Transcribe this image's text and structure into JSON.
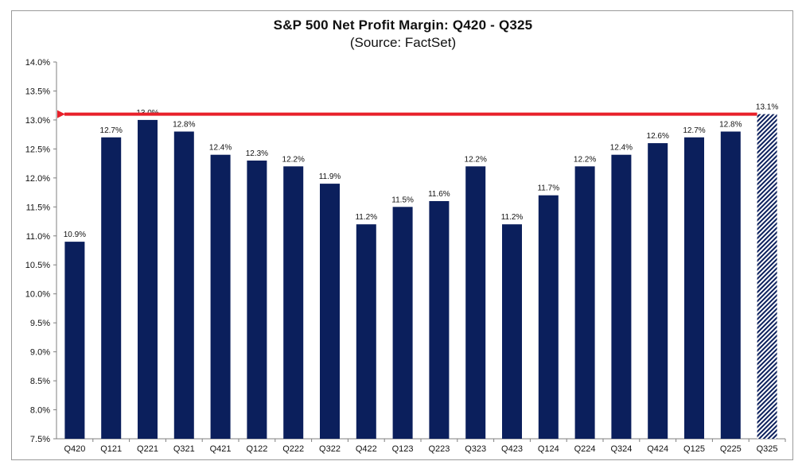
{
  "chart_data": {
    "type": "bar",
    "title": "S&P 500 Net Profit Margin: Q420 - Q325",
    "subtitle": "(Source: FactSet)",
    "xlabel": "",
    "ylabel": "",
    "categories": [
      "Q420",
      "Q121",
      "Q221",
      "Q321",
      "Q421",
      "Q122",
      "Q222",
      "Q322",
      "Q422",
      "Q123",
      "Q223",
      "Q323",
      "Q423",
      "Q124",
      "Q224",
      "Q324",
      "Q424",
      "Q125",
      "Q225",
      "Q325"
    ],
    "values": [
      10.9,
      12.7,
      13.0,
      12.8,
      12.4,
      12.3,
      12.2,
      11.9,
      11.2,
      11.5,
      11.6,
      12.2,
      11.2,
      11.7,
      12.2,
      12.4,
      12.6,
      12.7,
      12.8,
      13.1
    ],
    "data_labels": [
      "10.9%",
      "12.7%",
      "13.0%",
      "12.8%",
      "12.4%",
      "12.3%",
      "12.2%",
      "11.9%",
      "11.2%",
      "11.5%",
      "11.6%",
      "12.2%",
      "11.2%",
      "11.7%",
      "12.2%",
      "12.4%",
      "12.6%",
      "12.7%",
      "12.8%",
      "13.1%"
    ],
    "ylim": [
      7.5,
      14.0
    ],
    "yticks": [
      7.5,
      8.0,
      8.5,
      9.0,
      9.5,
      10.0,
      10.5,
      11.0,
      11.5,
      12.0,
      12.5,
      13.0,
      13.5,
      14.0
    ],
    "ytick_labels": [
      "7.5%",
      "8.0%",
      "8.5%",
      "9.0%",
      "9.5%",
      "10.0%",
      "10.5%",
      "11.0%",
      "11.5%",
      "12.0%",
      "12.5%",
      "13.0%",
      "13.5%",
      "14.0%"
    ],
    "bar_color": "#0b1f5c",
    "estimate_pattern": "diagonal-hatch",
    "estimate_category": "Q325",
    "arrow_color": "#e8202a",
    "arrow_level": 13.1,
    "grid": false,
    "legend": "none"
  }
}
